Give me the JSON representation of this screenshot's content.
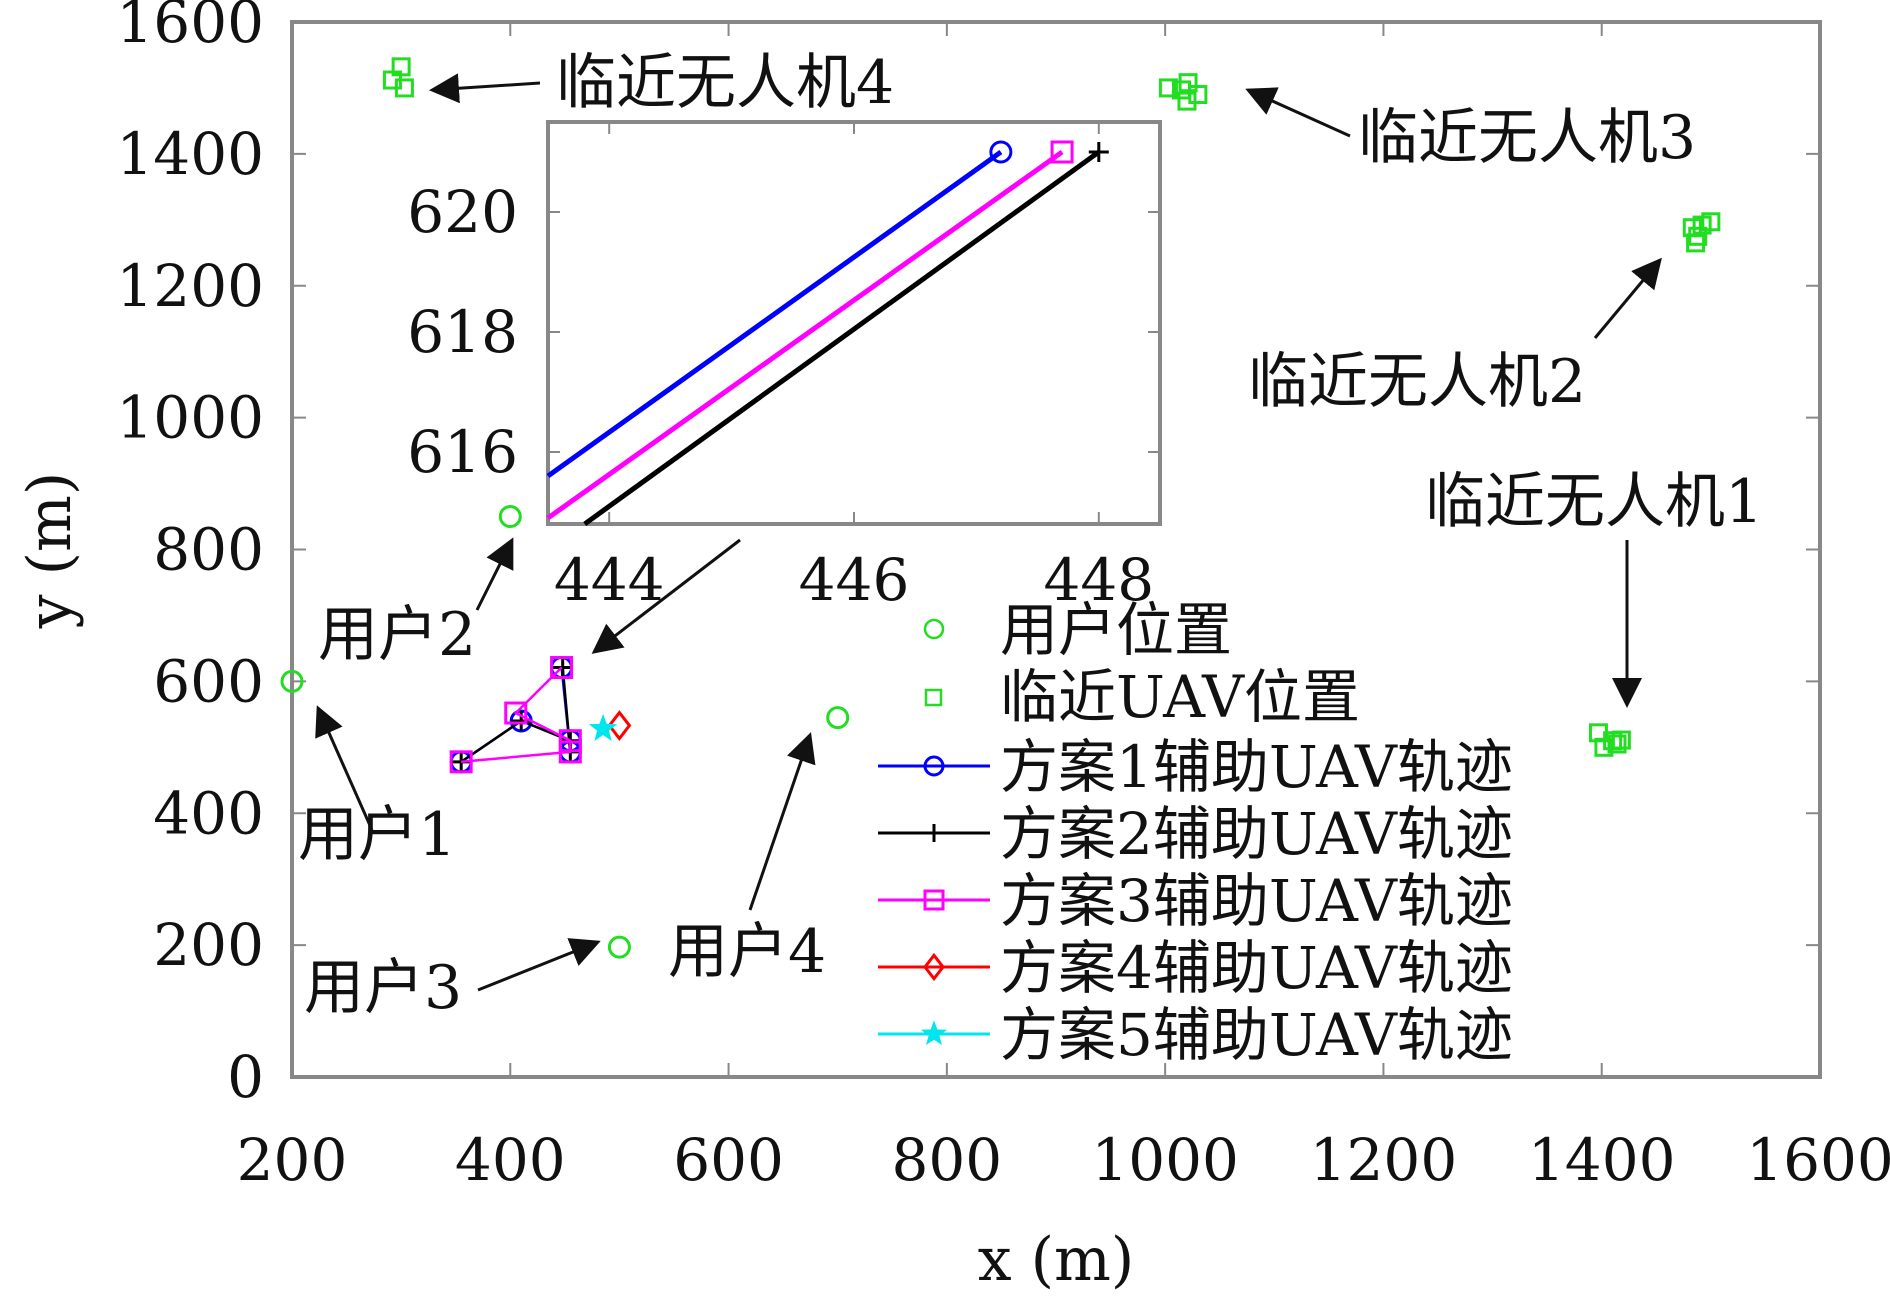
{
  "chart_data": {
    "type": "scatter",
    "xlabel": "x (m)",
    "ylabel": "y (m)",
    "xlim": [
      200,
      1600
    ],
    "ylim": [
      0,
      1600
    ],
    "xticks": [
      "200",
      "400",
      "600",
      "800",
      "1000",
      "1200",
      "1400",
      "1600"
    ],
    "yticks": [
      "0",
      "200",
      "400",
      "600",
      "800",
      "1000",
      "1200",
      "1400",
      "1600"
    ],
    "users": [
      {
        "name": "用户1",
        "x": 200,
        "y": 600
      },
      {
        "name": "用户2",
        "x": 400,
        "y": 850
      },
      {
        "name": "用户3",
        "x": 500,
        "y": 197
      },
      {
        "name": "用户4",
        "x": 700,
        "y": 545
      }
    ],
    "neighbor_uavs": [
      {
        "name": "临近无人机1",
        "points": [
          [
            1397,
            522
          ],
          [
            1402,
            500
          ],
          [
            1410,
            510
          ],
          [
            1414,
            505
          ],
          [
            1418,
            511
          ]
        ]
      },
      {
        "name": "临近无人机2",
        "points": [
          [
            1483,
            1288
          ],
          [
            1488,
            1275
          ],
          [
            1492,
            1292
          ],
          [
            1500,
            1297
          ],
          [
            1486,
            1265
          ]
        ]
      },
      {
        "name": "临近无人机3",
        "points": [
          [
            1003,
            1500
          ],
          [
            1015,
            1497
          ],
          [
            1021,
            1508
          ],
          [
            1030,
            1490
          ],
          [
            1020,
            1480
          ]
        ]
      },
      {
        "name": "临近无人机4",
        "points": [
          [
            292,
            1512
          ],
          [
            300,
            1532
          ],
          [
            303,
            1500
          ]
        ]
      }
    ],
    "series": [
      {
        "name": "方案1辅助UAV轨迹",
        "color": "#0000ff",
        "marker": "circle",
        "x": [
          355,
          410,
          455,
          455,
          447
        ],
        "y": [
          478,
          540,
          510,
          493,
          621
        ]
      },
      {
        "name": "方案2辅助UAV轨迹",
        "color": "#000000",
        "marker": "plus",
        "x": [
          355,
          410,
          455,
          455,
          448
        ],
        "y": [
          478,
          540,
          510,
          493,
          621
        ]
      },
      {
        "name": "方案3辅助UAV轨迹",
        "color": "#ff00ff",
        "marker": "square",
        "x": [
          355,
          455,
          455,
          405,
          447
        ],
        "y": [
          478,
          493,
          510,
          552,
          621
        ]
      },
      {
        "name": "方案4辅助UAV轨迹",
        "color": "#ff0000",
        "marker": "diamond",
        "x": [
          500
        ],
        "y": [
          533
        ]
      },
      {
        "name": "方案5辅助UAV轨迹",
        "color": "#00e5ee",
        "marker": "star",
        "x": [
          485
        ],
        "y": [
          528
        ]
      }
    ],
    "legend": {
      "position": "bottom-right",
      "entries": [
        "用户位置",
        "临近UAV位置",
        "方案1辅助UAV轨迹",
        "方案2辅助UAV轨迹",
        "方案3辅助UAV轨迹",
        "方案4辅助UAV轨迹",
        "方案5辅助UAV轨迹"
      ]
    },
    "inset": {
      "xlim": [
        443.5,
        448.5
      ],
      "ylim": [
        614.8,
        621.5
      ],
      "xticks": [
        "444",
        "446",
        "448"
      ],
      "yticks": [
        "616",
        "618",
        "620"
      ],
      "series": [
        {
          "name": "方案1辅助UAV轨迹",
          "color": "#0000ff",
          "marker": "circle",
          "x": [
            443.5,
            447.2
          ],
          "y": [
            615.6,
            621.0
          ]
        },
        {
          "name": "方案3辅助UAV轨迹",
          "color": "#ff00ff",
          "marker": "square",
          "x": [
            443.5,
            447.7
          ],
          "y": [
            614.9,
            621.0
          ]
        },
        {
          "name": "方案2辅助UAV轨迹",
          "color": "#000000",
          "marker": "plus",
          "x": [
            443.8,
            448.0
          ],
          "y": [
            614.8,
            621.0
          ]
        }
      ]
    },
    "annotations": {
      "user1": "用户1",
      "user2": "用户2",
      "user3": "用户3",
      "user4": "用户4",
      "uav1": "临近无人机1",
      "uav2": "临近无人机2",
      "uav3": "临近无人机3",
      "uav4": "临近无人机4"
    },
    "colors": {
      "user_marker": "#22dd22",
      "neighbor_marker": "#22dd22",
      "axis": "#888888"
    }
  }
}
